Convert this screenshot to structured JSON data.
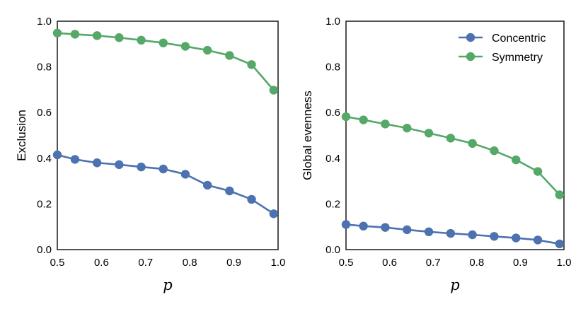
{
  "chart_data": [
    {
      "type": "line",
      "xlabel": "p",
      "ylabel": "Exclusion",
      "xlim": [
        0.5,
        1.0
      ],
      "ylim": [
        0.0,
        1.0
      ],
      "xticks": [
        "0.5",
        "0.6",
        "0.7",
        "0.8",
        "0.9",
        "1.0"
      ],
      "yticks": [
        "0.0",
        "0.2",
        "0.4",
        "0.6",
        "0.8",
        "1.0"
      ],
      "grid": false,
      "legend": null,
      "x": [
        0.5,
        0.54,
        0.59,
        0.64,
        0.69,
        0.74,
        0.79,
        0.84,
        0.89,
        0.94,
        0.99
      ],
      "series": [
        {
          "name": "Concentric",
          "color": "#4c72b0",
          "values": [
            0.415,
            0.395,
            0.38,
            0.372,
            0.362,
            0.353,
            0.33,
            0.282,
            0.257,
            0.22,
            0.157
          ]
        },
        {
          "name": "Symmetry",
          "color": "#55a868",
          "values": [
            0.948,
            0.943,
            0.937,
            0.928,
            0.917,
            0.905,
            0.89,
            0.873,
            0.85,
            0.81,
            0.698
          ]
        }
      ]
    },
    {
      "type": "line",
      "xlabel": "p",
      "ylabel": "Global evenness",
      "xlim": [
        0.5,
        1.0
      ],
      "ylim": [
        0.0,
        1.0
      ],
      "xticks": [
        "0.5",
        "0.6",
        "0.7",
        "0.8",
        "0.9",
        "1.0"
      ],
      "yticks": [
        "0.0",
        "0.2",
        "0.4",
        "0.6",
        "0.8",
        "1.0"
      ],
      "grid": false,
      "legend": "top-right",
      "x": [
        0.5,
        0.54,
        0.59,
        0.64,
        0.69,
        0.74,
        0.79,
        0.84,
        0.89,
        0.94,
        0.99
      ],
      "series": [
        {
          "name": "Concentric",
          "color": "#4c72b0",
          "values": [
            0.11,
            0.103,
            0.097,
            0.087,
            0.078,
            0.071,
            0.065,
            0.058,
            0.051,
            0.042,
            0.025
          ]
        },
        {
          "name": "Symmetry",
          "color": "#55a868",
          "values": [
            0.582,
            0.568,
            0.55,
            0.532,
            0.51,
            0.488,
            0.465,
            0.433,
            0.393,
            0.342,
            0.24
          ]
        }
      ]
    }
  ]
}
